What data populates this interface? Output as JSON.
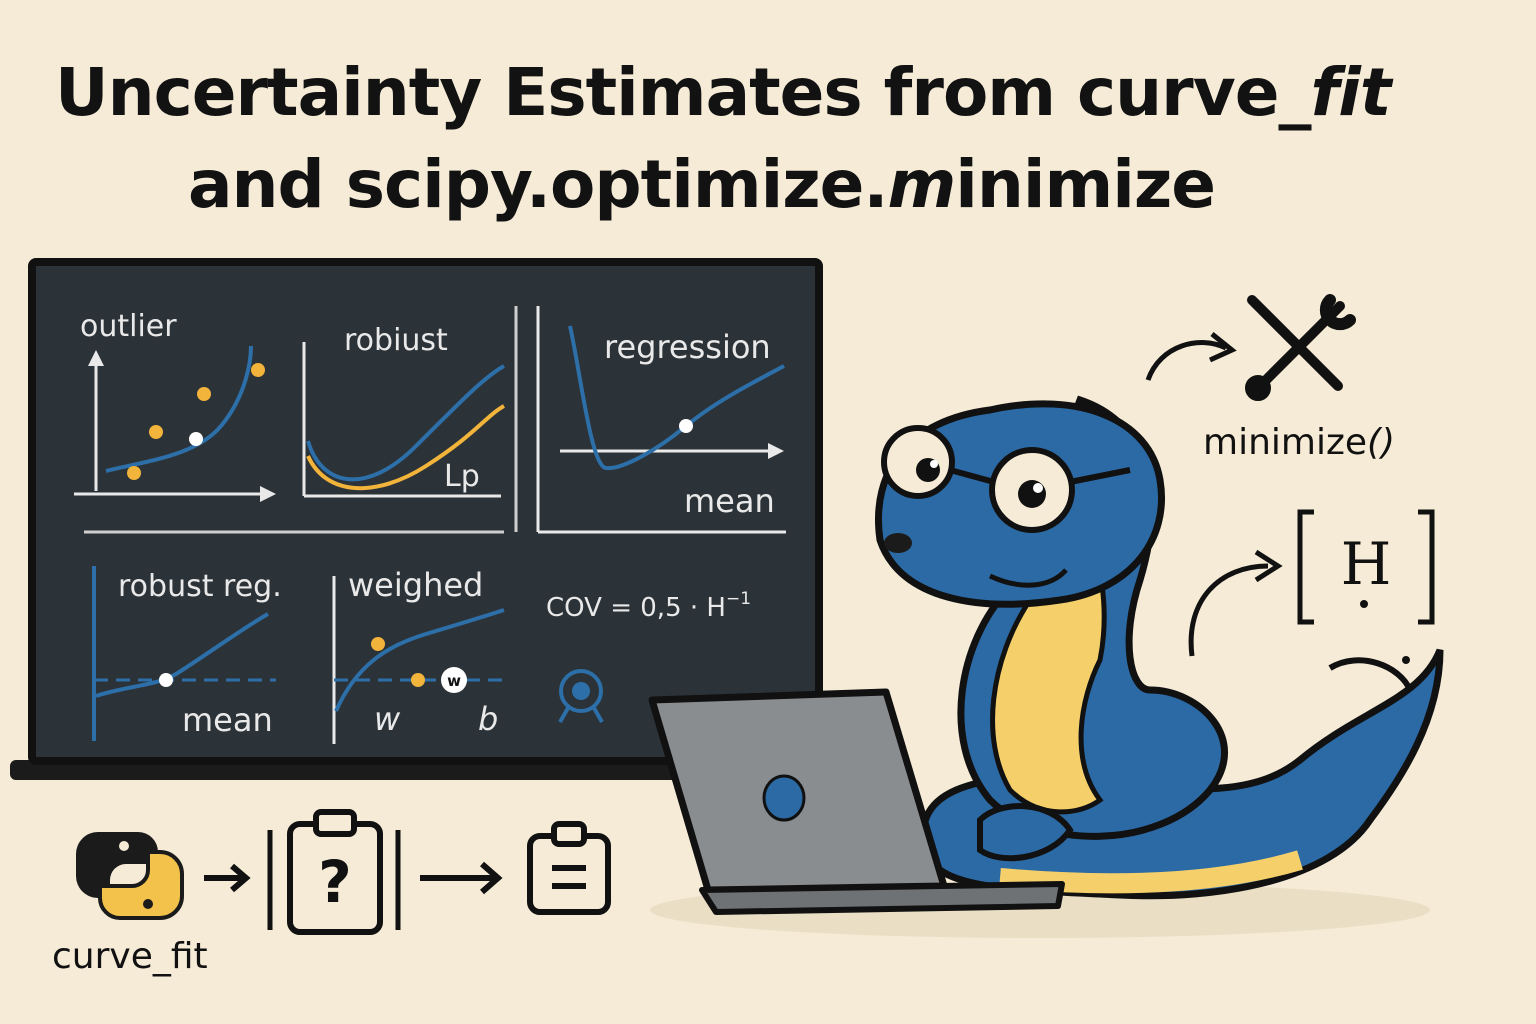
{
  "title": {
    "line1_prefix": "Uncertainty Estimates from curve_",
    "line1_italic": "fit",
    "line2_prefix": "and scipy.optimize.",
    "line2_italic": "m",
    "line2_suffix": "inimize"
  },
  "board": {
    "panels": {
      "outlier": "outlier",
      "robust": "robiust",
      "robust_norm": "Lp",
      "regression": "regression",
      "regression_axis": "mean",
      "robust_reg": "robust reg.",
      "robust_reg_axis": "mean",
      "weighed": "weighed",
      "weighed_point": "w",
      "weighed_x1": "w",
      "weighed_x2": "b",
      "cov_formula": "COV = 0,5 · H",
      "cov_exponent": "−1"
    }
  },
  "flow": {
    "label": "curve_fit",
    "step_question": "?"
  },
  "right": {
    "minimize_prefix": "minimize",
    "minimize_parens": "()",
    "hessian_symbol": "H"
  },
  "colors": {
    "background": "#f5ebd7",
    "board": "#2c3338",
    "blue": "#2d6fa8",
    "yellow": "#f2b43a",
    "snake_blue": "#2c6aa6",
    "snake_belly": "#f5cf6a",
    "laptop": "#8a8d8f"
  },
  "icons": [
    "python-logo-icon",
    "clipboard-question-icon",
    "clipboard-icon",
    "wrench-screwdriver-icon",
    "hessian-matrix-icon",
    "gauge-icon",
    "snake-mascot",
    "laptop-icon"
  ]
}
